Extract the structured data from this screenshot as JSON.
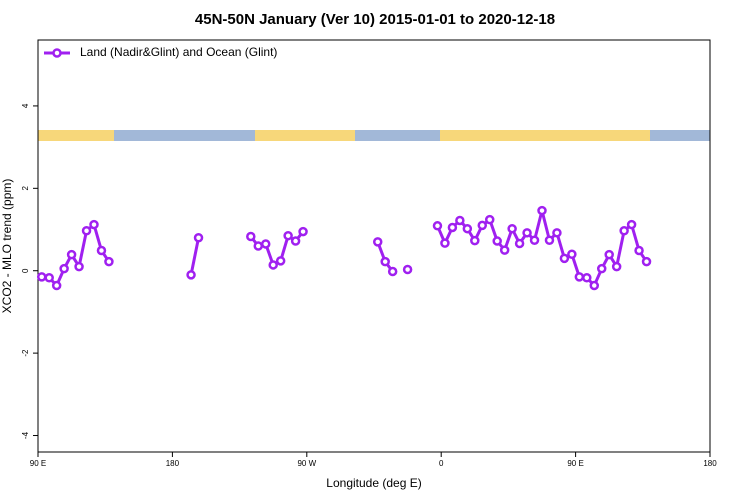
{
  "chart_data": {
    "type": "line",
    "title": "45N-50N January (Ver 10)   2015-01-01 to 2020-12-18",
    "xlabel": "Longitude (deg E)",
    "ylabel": "XCO2 - MLO trend (ppm)",
    "xlim": [
      90,
      540
    ],
    "xticks": [
      {
        "value": 90,
        "label": "90 E"
      },
      180,
      {
        "value": 270,
        "label": "90 W"
      },
      {
        "value": 360,
        "label": "0"
      },
      {
        "value": 450,
        "label": "90 E"
      },
      {
        "value": 540,
        "label": "180"
      }
    ],
    "ylim": [
      -4.4,
      5.6
    ],
    "yticks": [
      -4,
      -2,
      0,
      2,
      4
    ],
    "legend": "top-left",
    "x": [
      92.5,
      97.5,
      102.5,
      107.5,
      112.5,
      117.5,
      122.5,
      127.5,
      132.5,
      137.5,
      142.5,
      147.5,
      152.5,
      157.5,
      162.5,
      167.5,
      172.5,
      177.5,
      182.5,
      187.5,
      192.5,
      197.5,
      202.5,
      207.5,
      212.5,
      217.5,
      222.5,
      227.5,
      232.5,
      237.5,
      242.5,
      247.5,
      252.5,
      257.5,
      262.5,
      267.5,
      272.5,
      277.5,
      282.5,
      287.5,
      292.5,
      297.5,
      302.5,
      307.5,
      312.5,
      317.5,
      322.5,
      327.5,
      332.5,
      337.5,
      342.5,
      347.5,
      352.5,
      357.5,
      362.5,
      367.5,
      372.5,
      377.5,
      382.5,
      387.5,
      392.5,
      397.5,
      402.5,
      407.5,
      412.5,
      417.5,
      422.5,
      427.5,
      432.5,
      437.5,
      442.5,
      447.5,
      452.5,
      457.5,
      462.5,
      467.5,
      472.5,
      477.5,
      482.5,
      487.5,
      492.5,
      497.5
    ],
    "series": [
      {
        "name": "Land (Nadir&Glint) and Ocean (Glint)",
        "color": "#a020f0",
        "values": [
          -0.15,
          -0.17,
          -0.36,
          0.05,
          0.39,
          0.1,
          0.97,
          1.12,
          0.49,
          0.22,
          null,
          null,
          null,
          null,
          null,
          null,
          null,
          null,
          null,
          null,
          -0.1,
          0.8,
          null,
          null,
          null,
          null,
          null,
          null,
          0.83,
          0.6,
          0.65,
          0.14,
          0.24,
          0.85,
          0.72,
          0.95,
          null,
          null,
          null,
          null,
          null,
          null,
          null,
          null,
          null,
          0.7,
          0.22,
          -0.02,
          null,
          0.03,
          null,
          null,
          null,
          1.09,
          0.67,
          1.05,
          1.22,
          1.02,
          0.73,
          1.1,
          1.24,
          0.72,
          0.5,
          1.02,
          0.66,
          0.92,
          0.74,
          1.46,
          0.74,
          0.92,
          0.3,
          0.4,
          -0.15,
          -0.17,
          -0.36,
          0.05,
          0.39,
          0.1,
          0.97,
          1.12,
          0.49,
          0.22
        ]
      }
    ]
  }
}
